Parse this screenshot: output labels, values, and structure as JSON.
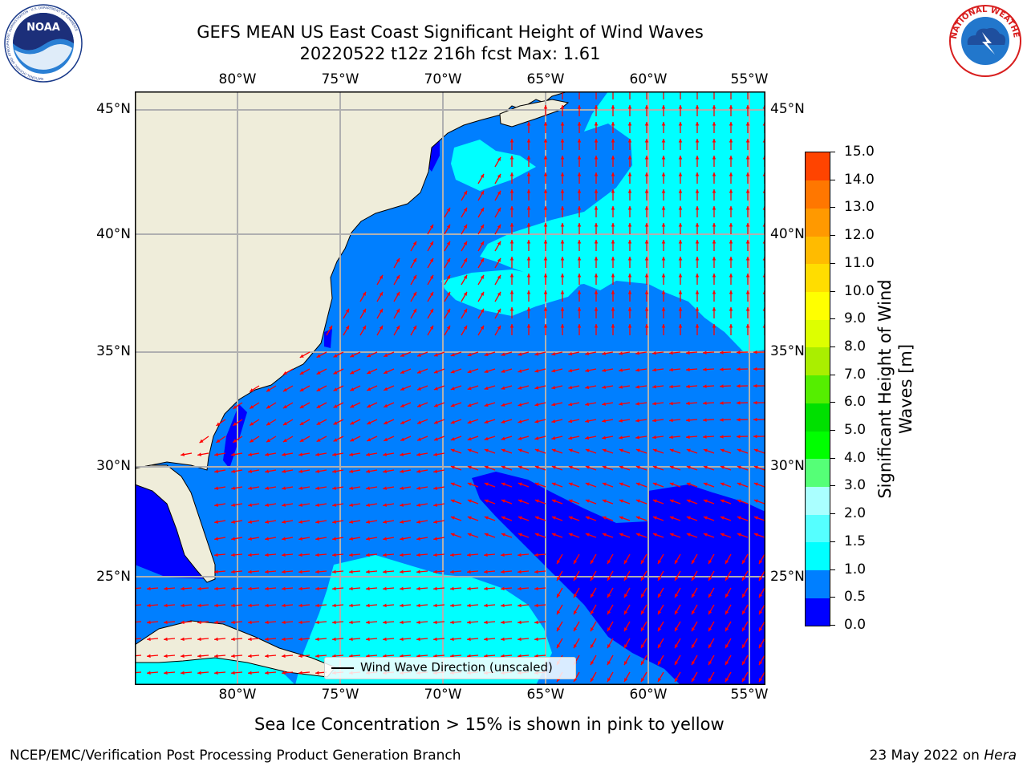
{
  "title": {
    "line1": "GEFS MEAN US East Coast Significant Height of Wind Waves",
    "line2": "20220522 t12z 216h fcst   Max: 1.61"
  },
  "logos": {
    "noaa_text": "NOAA",
    "noaa_ring_text": "NATIONAL OCEANIC AND ATMOSPHERIC ADMINISTRATION · U.S. DEPARTMENT OF COMMERCE",
    "nws_ring_text": "NATIONAL WEATHER SERVICE"
  },
  "map": {
    "lon_labels": [
      "80°W",
      "75°W",
      "70°W",
      "65°W",
      "60°W",
      "55°W"
    ],
    "lat_labels": [
      "45°N",
      "40°N",
      "35°N",
      "30°N",
      "25°N"
    ],
    "legend_label": "Wind Wave Direction (unscaled)",
    "colors": {
      "land": "#efedda",
      "bin_0": "#0000ff",
      "bin_05": "#007fff",
      "bin_1": "#00ffff",
      "arrow": "#ff0000",
      "grid": "#b0b0b0"
    }
  },
  "colorbar": {
    "label_line1": "Significant Height of Wind",
    "label_line2": "Waves [m]",
    "ticks": [
      "0.0",
      "0.5",
      "1.0",
      "1.5",
      "2.0",
      "3.0",
      "4.0",
      "5.0",
      "6.0",
      "7.0",
      "8.0",
      "9.0",
      "10.0",
      "11.0",
      "12.0",
      "13.0",
      "14.0",
      "15.0"
    ],
    "colors": [
      "#0000ff",
      "#007fff",
      "#00ffff",
      "#55ffff",
      "#aaffff",
      "#55ff77",
      "#00ff00",
      "#00e000",
      "#55ee00",
      "#aaee00",
      "#ddff00",
      "#ffff00",
      "#ffdd00",
      "#ffbb00",
      "#ff9900",
      "#ff7700",
      "#ff4400",
      "#ff0000"
    ]
  },
  "footer": {
    "sea_ice_note": "Sea Ice Concentration > 15% is shown in pink to yellow",
    "branch": "NCEP/EMC/Verification Post Processing Product Generation Branch",
    "date_prefix": "23 May 2022 on ",
    "machine": "Hera"
  }
}
